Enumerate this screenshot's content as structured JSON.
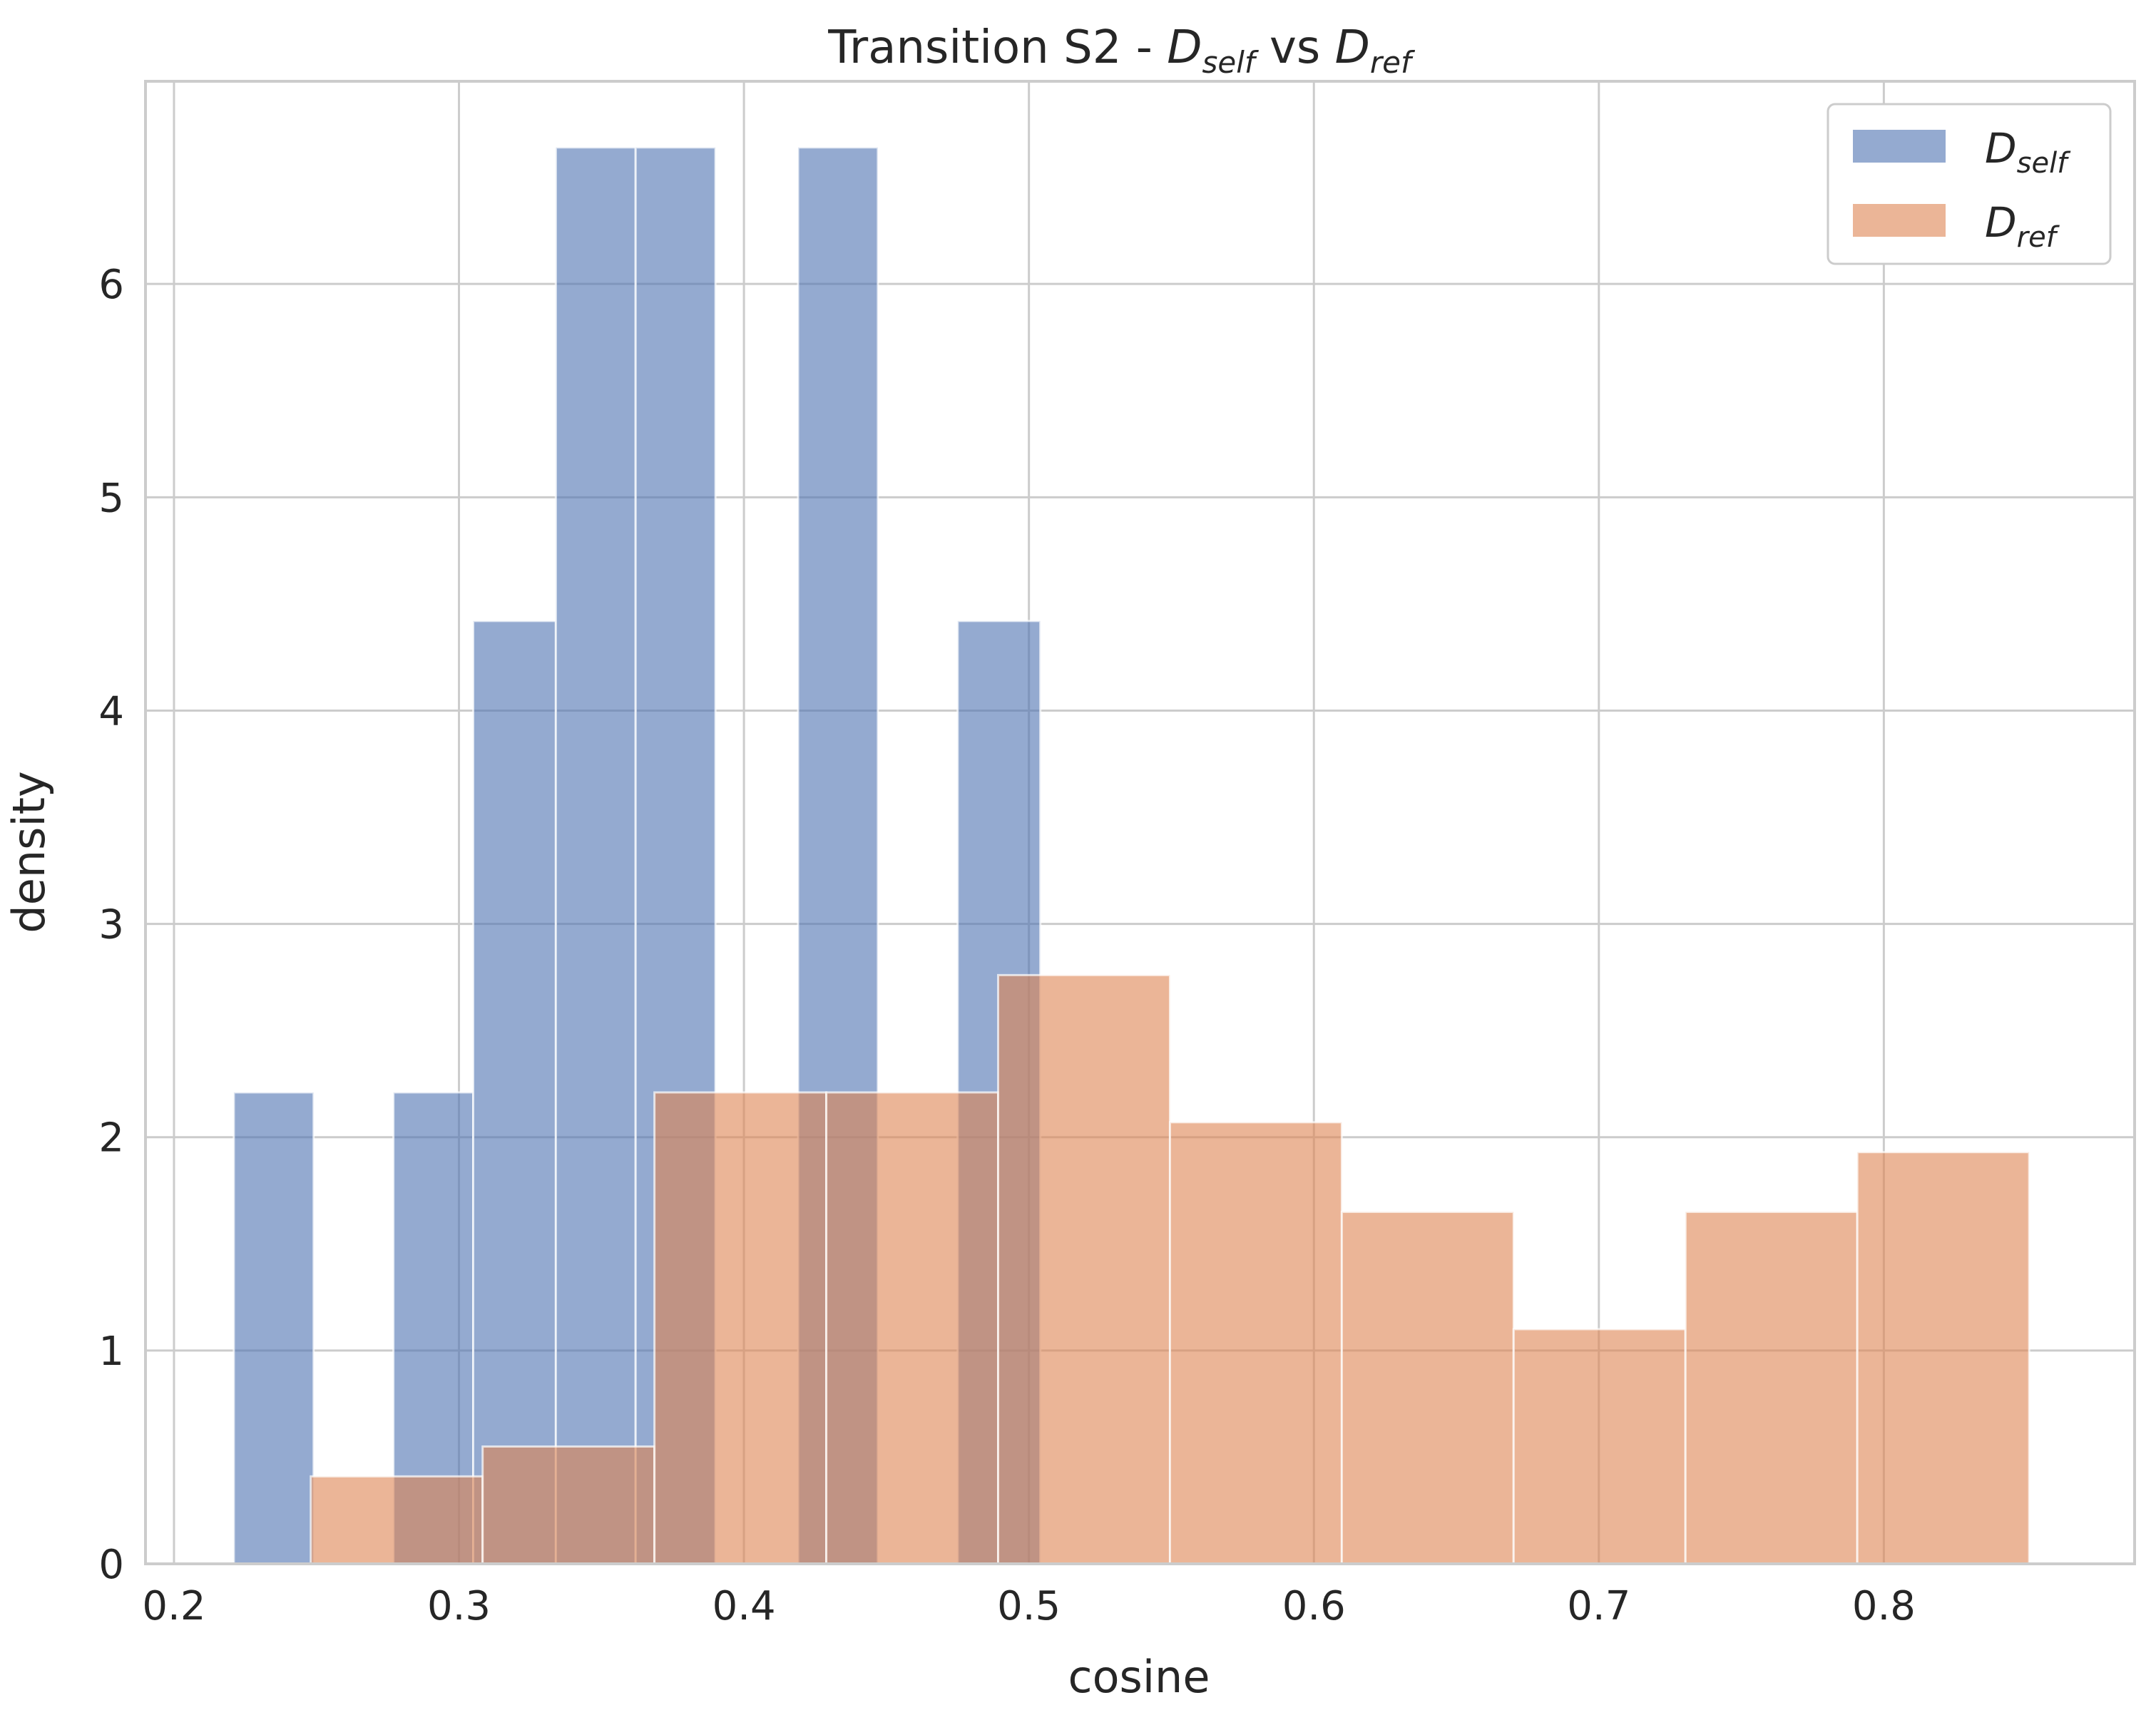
{
  "chart_data": {
    "type": "histogram",
    "title": {
      "prefix": "Transition S2 - ",
      "d1_main": "D",
      "d1_sub": "self",
      "middle": " vs ",
      "d2_main": "D",
      "d2_sub": "ref"
    },
    "xlabel": "cosine",
    "ylabel": "density",
    "xlim": [
      0.19,
      0.888
    ],
    "ylim": [
      0,
      6.95
    ],
    "xticks": [
      0.2,
      0.3,
      0.4,
      0.5,
      0.6,
      0.7,
      0.8
    ],
    "xtick_labels": [
      "0.2",
      "0.3",
      "0.4",
      "0.5",
      "0.6",
      "0.7",
      "0.8"
    ],
    "yticks": [
      0,
      1,
      2,
      3,
      4,
      5,
      6
    ],
    "ytick_labels": [
      "0",
      "1",
      "2",
      "3",
      "4",
      "5",
      "6"
    ],
    "grid": true,
    "legend_position": "top-right",
    "series": [
      {
        "name_main": "D",
        "name_sub": "self",
        "color": "#4c72b0",
        "opacity": 0.6,
        "bin_edges": [
          0.221,
          0.249,
          0.277,
          0.305,
          0.334,
          0.362,
          0.39,
          0.419,
          0.447,
          0.475,
          0.504
        ],
        "values": [
          2.21,
          0,
          2.21,
          4.42,
          6.64,
          6.64,
          0,
          6.64,
          0,
          4.42
        ]
      },
      {
        "name_main": "D",
        "name_sub": "ref",
        "color": "#dd8452",
        "opacity": 0.6,
        "bin_edges": [
          0.248,
          0.3083,
          0.3686,
          0.4289,
          0.4892,
          0.5495,
          0.6098,
          0.6701,
          0.7304,
          0.7907,
          0.851
        ],
        "values": [
          0.41,
          0.55,
          2.21,
          2.21,
          2.76,
          2.07,
          1.65,
          1.1,
          1.65,
          1.93
        ]
      }
    ]
  }
}
